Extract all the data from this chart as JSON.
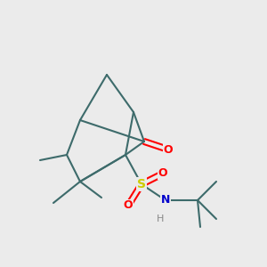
{
  "background_color": "#ebebeb",
  "bond_color": "#3d6b6b",
  "bond_width": 1.5,
  "atom_colors": {
    "O": "#ff0000",
    "S": "#cccc00",
    "N": "#0000cc",
    "H": "#888888",
    "C": "#3d6b6b"
  },
  "figsize": [
    3.0,
    3.0
  ],
  "dpi": 100,
  "xlim": [
    0,
    10
  ],
  "ylim": [
    0,
    10
  ]
}
